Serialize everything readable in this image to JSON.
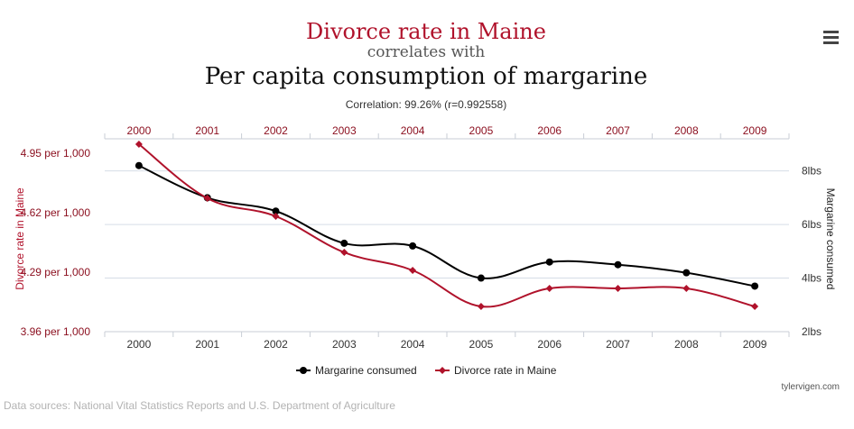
{
  "chart_data": {
    "type": "line",
    "title_primary": "Divorce rate in Maine",
    "title_connector": "correlates with",
    "title_secondary": "Per capita consumption of margarine",
    "subtitle": "Correlation: 99.26% (r=0.992558)",
    "categories": [
      "2000",
      "2001",
      "2002",
      "2003",
      "2004",
      "2005",
      "2006",
      "2007",
      "2008",
      "2009"
    ],
    "x": [
      2000,
      2001,
      2002,
      2003,
      2004,
      2005,
      2006,
      2007,
      2008,
      2009
    ],
    "left_axis": {
      "label": "Divorce rate in Maine",
      "ticks": [
        "4.95 per 1,000",
        "4.62 per 1,000",
        "4.29 per 1,000",
        "3.96 per 1,000"
      ],
      "tick_values": [
        4.95,
        4.62,
        4.29,
        3.96
      ],
      "ylim": [
        3.96,
        5.03
      ]
    },
    "right_axis": {
      "label": "Margarine consumed",
      "ticks": [
        "8lbs",
        "6lbs",
        "4lbs",
        "2lbs"
      ],
      "tick_values": [
        8,
        6,
        4,
        2
      ],
      "ylim": [
        2,
        9.2
      ]
    },
    "series": [
      {
        "name": "Margarine consumed",
        "axis": "right",
        "color": "#000000",
        "marker": "circle",
        "values": [
          8.2,
          7.0,
          6.5,
          5.3,
          5.2,
          4.0,
          4.6,
          4.5,
          4.2,
          3.7
        ]
      },
      {
        "name": "Divorce rate in Maine",
        "axis": "left",
        "color": "#b0122b",
        "marker": "diamond",
        "values": [
          5.0,
          4.7,
          4.6,
          4.4,
          4.3,
          4.1,
          4.2,
          4.2,
          4.2,
          4.1
        ]
      }
    ],
    "legend_position": "bottom-center"
  },
  "menu_icon": "hamburger-menu-icon",
  "credit": "tylervigen.com",
  "source_note": "Data sources: National Vital Statistics Reports and U.S. Department of Agriculture"
}
